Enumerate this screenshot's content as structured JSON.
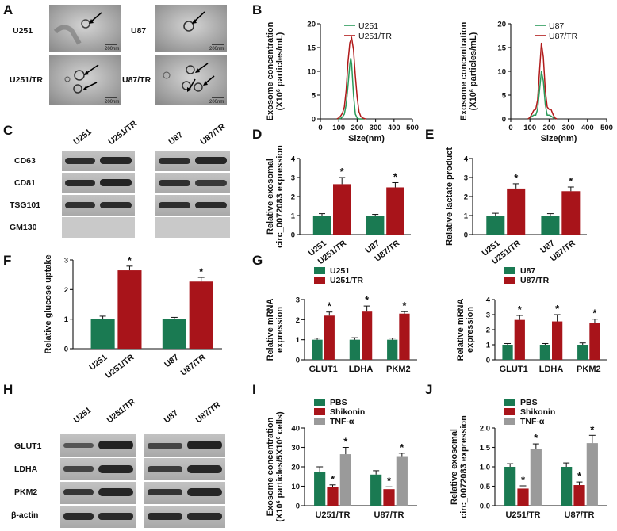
{
  "panels": {
    "A": {
      "letter": "A",
      "images": [
        {
          "label": "U251",
          "scale": "200nm"
        },
        {
          "label": "U87",
          "scale": "200nm"
        },
        {
          "label": "U251/TR",
          "scale": "200nm"
        },
        {
          "label": "U87/TR",
          "scale": "200nm"
        }
      ]
    },
    "C": {
      "letter": "C",
      "groups": [
        [
          "U251",
          "U251/TR"
        ],
        [
          "U87",
          "U87/TR"
        ]
      ],
      "rows": [
        "CD63",
        "CD81",
        "TSG101",
        "GM130"
      ]
    },
    "H": {
      "letter": "H",
      "groups": [
        [
          "U251",
          "U251/TR"
        ],
        [
          "U87",
          "U87/TR"
        ]
      ],
      "rows": [
        "GLUT1",
        "LDHA",
        "PKM2",
        "β-actin"
      ]
    }
  },
  "colors": {
    "green": "#1a7a52",
    "red": "#a8141a",
    "gray": "#9a9a9a",
    "green_line": "#2a9a5a",
    "red_line": "#b01a1a"
  },
  "chart_data": [
    {
      "id": "B1",
      "letter": "B",
      "type": "line",
      "ylabel": [
        "Exosome concentration",
        "(X10^6 particles/mL)"
      ],
      "xlabel": "Size(nm)",
      "xlim": [
        0,
        500
      ],
      "ylim": [
        0,
        20
      ],
      "xticks": [
        0,
        100,
        200,
        300,
        400,
        500
      ],
      "yticks": [
        0,
        5,
        10,
        15,
        20
      ],
      "legend_position": "top-right",
      "series": [
        {
          "name": "U251",
          "color": "green",
          "x": [
            90,
            110,
            120,
            130,
            140,
            150,
            160,
            165,
            170,
            180,
            190,
            200,
            210,
            220,
            240
          ],
          "y": [
            0,
            0.1,
            0.4,
            1,
            3,
            7,
            11.5,
            12.8,
            11.5,
            5,
            1,
            0.2,
            0,
            0,
            0
          ]
        },
        {
          "name": "U251/TR",
          "color": "red",
          "x": [
            90,
            100,
            110,
            120,
            130,
            140,
            150,
            160,
            170,
            180,
            190,
            200,
            210,
            220,
            230,
            240,
            250
          ],
          "y": [
            0,
            0.2,
            0.6,
            1.2,
            2.5,
            6,
            12,
            16,
            17,
            14.5,
            9,
            4.5,
            1.5,
            0.5,
            0.2,
            0.05,
            0
          ]
        }
      ]
    },
    {
      "id": "B2",
      "letter": "",
      "type": "line",
      "ylabel": [
        "Exosome concentration",
        "(X10^6 particles/mL)"
      ],
      "xlabel": "Size(nm)",
      "xlim": [
        0,
        500
      ],
      "ylim": [
        0,
        20
      ],
      "xticks": [
        0,
        100,
        200,
        300,
        400,
        500
      ],
      "yticks": [
        0,
        5,
        10,
        15,
        20
      ],
      "legend_position": "top-right",
      "series": [
        {
          "name": "U87",
          "color": "green",
          "x": [
            90,
            100,
            110,
            120,
            130,
            140,
            150,
            160,
            170,
            180,
            190,
            200,
            210,
            220,
            230
          ],
          "y": [
            0,
            0.2,
            0.5,
            0.8,
            0.8,
            2,
            6,
            10,
            8,
            3,
            0.8,
            0.8,
            0.6,
            0.3,
            0
          ]
        },
        {
          "name": "U87/TR",
          "color": "red",
          "x": [
            90,
            100,
            110,
            120,
            130,
            140,
            150,
            160,
            170,
            180,
            190,
            200,
            210,
            220,
            230,
            240
          ],
          "y": [
            0,
            0.3,
            1,
            1.8,
            2,
            4,
            10,
            16,
            13,
            6,
            2.5,
            2,
            2,
            1,
            0.2,
            0
          ]
        }
      ]
    },
    {
      "id": "D",
      "letter": "D",
      "type": "bar",
      "ylabel": [
        "Relative exosomal",
        "circ_0072083 expression"
      ],
      "ylim": [
        0,
        4
      ],
      "yticks": [
        0,
        1,
        2,
        3,
        4
      ],
      "categories": [
        "U251",
        "U251/TR",
        "U87",
        "U87/TR"
      ],
      "values": [
        1.0,
        2.65,
        1.0,
        2.48
      ],
      "errors": [
        0.1,
        0.35,
        0.06,
        0.25
      ],
      "colors": [
        "green",
        "red",
        "green",
        "red"
      ],
      "stars": [
        "",
        "*",
        "",
        "*"
      ]
    },
    {
      "id": "E",
      "letter": "E",
      "type": "bar",
      "ylabel": [
        "Relative lactate product"
      ],
      "ylim": [
        0,
        4
      ],
      "yticks": [
        0,
        1,
        2,
        3,
        4
      ],
      "categories": [
        "U251",
        "U251/TR",
        "U87",
        "U87/TR"
      ],
      "values": [
        1.0,
        2.42,
        1.0,
        2.28
      ],
      "errors": [
        0.12,
        0.25,
        0.1,
        0.22
      ],
      "colors": [
        "green",
        "red",
        "green",
        "red"
      ],
      "stars": [
        "",
        "*",
        "",
        "*"
      ]
    },
    {
      "id": "F",
      "letter": "F",
      "type": "bar",
      "ylabel": [
        "Relative glucose uptake"
      ],
      "ylim": [
        0,
        3
      ],
      "yticks": [
        0,
        1,
        2,
        3
      ],
      "categories": [
        "U251",
        "U251/TR",
        "U87",
        "U87/TR"
      ],
      "values": [
        1.0,
        2.65,
        1.0,
        2.27
      ],
      "errors": [
        0.1,
        0.14,
        0.06,
        0.14
      ],
      "colors": [
        "green",
        "red",
        "green",
        "red"
      ],
      "stars": [
        "",
        "*",
        "",
        "*"
      ]
    },
    {
      "id": "G1",
      "letter": "G",
      "type": "bar",
      "ylabel": [
        "Relative mRNA",
        "expression"
      ],
      "ylim": [
        0,
        3
      ],
      "yticks": [
        0,
        1,
        2,
        3
      ],
      "categories": [
        "GLUT1",
        "LDHA",
        "PKM2"
      ],
      "legend_position": "top-left",
      "series": [
        {
          "name": "U251",
          "color": "green",
          "values": [
            1.0,
            1.0,
            1.0
          ],
          "errors": [
            0.08,
            0.1,
            0.08
          ],
          "stars": [
            "",
            "",
            ""
          ]
        },
        {
          "name": "U251/TR",
          "color": "red",
          "values": [
            2.2,
            2.4,
            2.3
          ],
          "errors": [
            0.18,
            0.28,
            0.1
          ],
          "stars": [
            "*",
            "*",
            "*"
          ]
        }
      ]
    },
    {
      "id": "G2",
      "letter": "",
      "type": "bar",
      "ylabel": [
        "Relative mRNA",
        "expression"
      ],
      "ylim": [
        0,
        4
      ],
      "yticks": [
        0,
        1,
        2,
        3,
        4
      ],
      "categories": [
        "GLUT1",
        "LDHA",
        "PKM2"
      ],
      "legend_position": "top-left",
      "series": [
        {
          "name": "U87",
          "color": "green",
          "values": [
            1.0,
            1.0,
            1.0
          ],
          "errors": [
            0.08,
            0.08,
            0.12
          ],
          "stars": [
            "",
            "",
            ""
          ]
        },
        {
          "name": "U87/TR",
          "color": "red",
          "values": [
            2.65,
            2.55,
            2.45
          ],
          "errors": [
            0.3,
            0.45,
            0.25
          ],
          "stars": [
            "*",
            "*",
            "*"
          ]
        }
      ]
    },
    {
      "id": "I",
      "letter": "I",
      "type": "bar",
      "ylabel": [
        "Exosome concentration",
        "(X10^6 particles/5X10^6 cells)"
      ],
      "ylim": [
        0,
        40
      ],
      "yticks": [
        0,
        10,
        20,
        30,
        40
      ],
      "categories": [
        "U251/TR",
        "U87/TR"
      ],
      "legend_position": "top-left",
      "series": [
        {
          "name": "PBS",
          "color": "green",
          "values": [
            17.5,
            16
          ],
          "errors": [
            2.5,
            2
          ],
          "stars": [
            "",
            ""
          ]
        },
        {
          "name": "Shikonin",
          "color": "red",
          "values": [
            9.5,
            8.5
          ],
          "errors": [
            1.2,
            1.2
          ],
          "stars": [
            "*",
            "*"
          ]
        },
        {
          "name": "TNF-α",
          "color": "gray",
          "values": [
            26.5,
            25.5
          ],
          "errors": [
            3.5,
            1.5
          ],
          "stars": [
            "*",
            "*"
          ]
        }
      ]
    },
    {
      "id": "J",
      "letter": "J",
      "type": "bar",
      "ylabel": [
        "Relative exosomal",
        "circ_0072083 expression"
      ],
      "ylim": [
        0,
        2.0
      ],
      "yticks": [
        0.0,
        0.5,
        1.0,
        1.5,
        2.0
      ],
      "ytick_labels": [
        "0.0",
        "0.5",
        "1.0",
        "1.5",
        "2.0"
      ],
      "categories": [
        "U251/TR",
        "U87/TR"
      ],
      "legend_position": "top-left",
      "series": [
        {
          "name": "PBS",
          "color": "green",
          "values": [
            1.0,
            1.0
          ],
          "errors": [
            0.08,
            0.1
          ],
          "stars": [
            "",
            ""
          ]
        },
        {
          "name": "Shikonin",
          "color": "red",
          "values": [
            0.44,
            0.53
          ],
          "errors": [
            0.07,
            0.08
          ],
          "stars": [
            "*",
            "*"
          ]
        },
        {
          "name": "TNF-α",
          "color": "gray",
          "values": [
            1.46,
            1.61
          ],
          "errors": [
            0.13,
            0.2
          ],
          "stars": [
            "*",
            "*"
          ]
        }
      ]
    }
  ]
}
